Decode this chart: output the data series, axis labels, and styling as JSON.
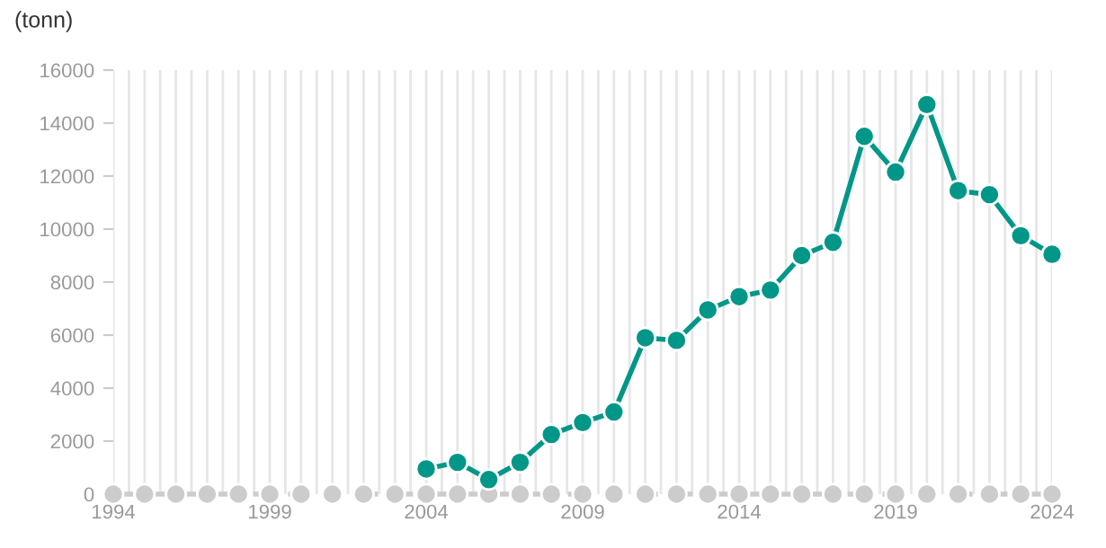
{
  "chart_data": {
    "type": "line",
    "ylabel": "(tonn)",
    "x": [
      1994,
      1995,
      1996,
      1997,
      1998,
      1999,
      2000,
      2001,
      2002,
      2003,
      2004,
      2005,
      2006,
      2007,
      2008,
      2009,
      2010,
      2011,
      2012,
      2013,
      2014,
      2015,
      2016,
      2017,
      2018,
      2019,
      2020,
      2021,
      2022,
      2023,
      2024
    ],
    "series": [
      {
        "color": "#cccccc",
        "line_style": "dashed",
        "values": [
          0,
          0,
          0,
          0,
          0,
          0,
          0,
          0,
          0,
          0,
          0,
          0,
          0,
          0,
          0,
          0,
          0,
          0,
          0,
          0,
          0,
          0,
          0,
          0,
          0,
          0,
          0,
          0,
          0,
          0,
          0
        ]
      },
      {
        "color": "#009688",
        "line_style": "solid",
        "x": [
          2004,
          2005,
          2006,
          2007,
          2008,
          2009,
          2010,
          2011,
          2012,
          2013,
          2014,
          2015,
          2016,
          2017,
          2018,
          2019,
          2020,
          2021,
          2022,
          2023,
          2024
        ],
        "values": [
          950,
          1200,
          550,
          1200,
          2250,
          2700,
          3100,
          5900,
          5800,
          6950,
          7450,
          7700,
          9000,
          9500,
          13500,
          12150,
          14700,
          11450,
          11300,
          9750,
          9050
        ]
      }
    ],
    "xlim": [
      1994,
      2024
    ],
    "xticks": [
      1994,
      {
        "value": 1994.5,
        "label": null
      },
      {
        "value": 1995,
        "label": null
      },
      {
        "value": 1995.5,
        "label": null
      },
      {
        "value": 1996,
        "label": null
      },
      {
        "value": 1996.5,
        "label": null
      },
      {
        "value": 1997,
        "label": null
      },
      {
        "value": 1997.5,
        "label": null
      },
      {
        "value": 1998,
        "label": null
      },
      {
        "value": 1998.5,
        "label": null
      },
      1999,
      {
        "value": 1999.5,
        "label": null
      },
      {
        "value": 2000,
        "label": null
      },
      {
        "value": 2000.5,
        "label": null
      },
      {
        "value": 2001,
        "label": null
      },
      {
        "value": 2001.5,
        "label": null
      },
      {
        "value": 2002,
        "label": null
      },
      {
        "value": 2002.5,
        "label": null
      },
      {
        "value": 2003,
        "label": null
      },
      {
        "value": 2003.5,
        "label": null
      },
      2004,
      {
        "value": 2004.5,
        "label": null
      },
      {
        "value": 2005,
        "label": null
      },
      {
        "value": 2005.5,
        "label": null
      },
      {
        "value": 2006,
        "label": null
      },
      {
        "value": 2006.5,
        "label": null
      },
      {
        "value": 2007,
        "label": null
      },
      {
        "value": 2007.5,
        "label": null
      },
      {
        "value": 2008,
        "label": null
      },
      {
        "value": 2008.5,
        "label": null
      },
      2009,
      {
        "value": 2009.5,
        "label": null
      },
      {
        "value": 2010,
        "label": null
      },
      {
        "value": 2010.5,
        "label": null
      },
      {
        "value": 2011,
        "label": null
      },
      {
        "value": 2011.5,
        "label": null
      },
      {
        "value": 2012,
        "label": null
      },
      {
        "value": 2012.5,
        "label": null
      },
      {
        "value": 2013,
        "label": null
      },
      {
        "value": 2013.5,
        "label": null
      },
      2014,
      {
        "value": 2014.5,
        "label": null
      },
      {
        "value": 2015,
        "label": null
      },
      {
        "value": 2015.5,
        "label": null
      },
      {
        "value": 2016,
        "label": null
      },
      {
        "value": 2016.5,
        "label": null
      },
      {
        "value": 2017,
        "label": null
      },
      {
        "value": 2017.5,
        "label": null
      },
      {
        "value": 2018,
        "label": null
      },
      {
        "value": 2018.5,
        "label": null
      },
      2019,
      {
        "value": 2019.5,
        "label": null
      },
      {
        "value": 2020,
        "label": null
      },
      {
        "value": 2020.5,
        "label": null
      },
      {
        "value": 2021,
        "label": null
      },
      {
        "value": 2021.5,
        "label": null
      },
      {
        "value": 2022,
        "label": null
      },
      {
        "value": 2022.5,
        "label": null
      },
      {
        "value": 2023,
        "label": null
      },
      {
        "value": 2023.5,
        "label": null
      },
      2024
    ],
    "ylim": [
      0,
      16000
    ],
    "yticks": [
      0,
      2000,
      4000,
      6000,
      8000,
      10000,
      12000,
      14000,
      16000
    ],
    "grid": "x",
    "marker": "circle"
  }
}
